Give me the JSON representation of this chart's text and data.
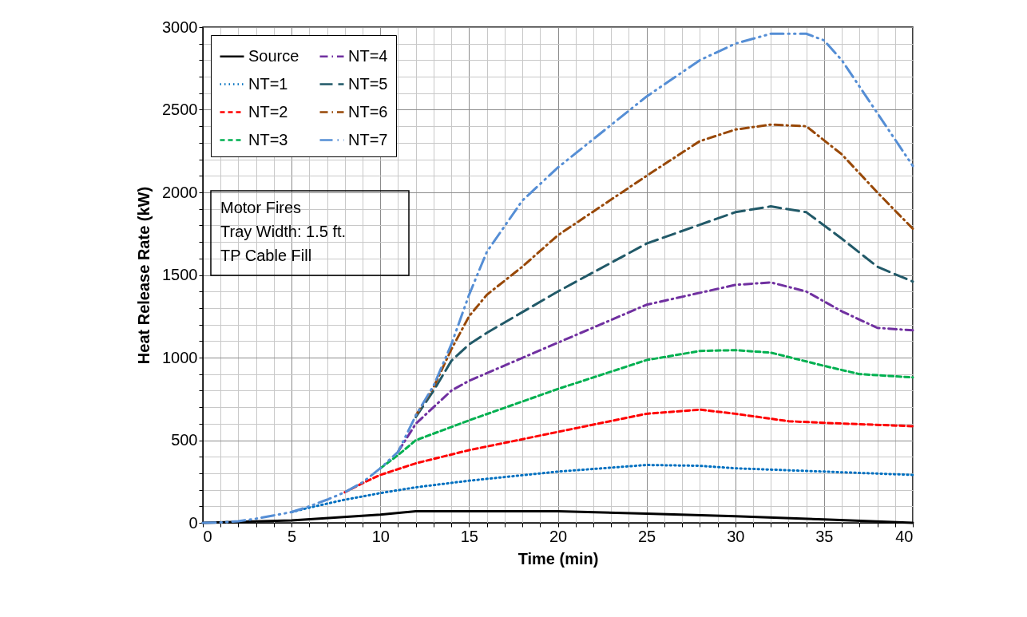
{
  "chart_data": {
    "type": "line",
    "xlabel": "Time (min)",
    "ylabel": "Heat Release Rate (kW)",
    "annotations": [
      "Motor Fires",
      "Tray Width: 1.5 ft.",
      "TP Cable Fill"
    ],
    "xlim": [
      0,
      40
    ],
    "ylim": [
      0,
      3000
    ],
    "xticks": [
      0,
      {
        "value": 1,
        "label": null
      },
      {
        "value": 2,
        "label": null
      },
      {
        "value": 3,
        "label": null
      },
      {
        "value": 4,
        "label": null
      },
      5,
      {
        "value": 6,
        "label": null
      },
      {
        "value": 7,
        "label": null
      },
      {
        "value": 8,
        "label": null
      },
      {
        "value": 9,
        "label": null
      },
      10,
      {
        "value": 11,
        "label": null
      },
      {
        "value": 12,
        "label": null
      },
      {
        "value": 13,
        "label": null
      },
      {
        "value": 14,
        "label": null
      },
      15,
      {
        "value": 16,
        "label": null
      },
      {
        "value": 17,
        "label": null
      },
      {
        "value": 18,
        "label": null
      },
      {
        "value": 19,
        "label": null
      },
      20,
      {
        "value": 21,
        "label": null
      },
      {
        "value": 22,
        "label": null
      },
      {
        "value": 23,
        "label": null
      },
      {
        "value": 24,
        "label": null
      },
      25,
      {
        "value": 26,
        "label": null
      },
      {
        "value": 27,
        "label": null
      },
      {
        "value": 28,
        "label": null
      },
      {
        "value": 29,
        "label": null
      },
      30,
      {
        "value": 31,
        "label": null
      },
      {
        "value": 32,
        "label": null
      },
      {
        "value": 33,
        "label": null
      },
      {
        "value": 34,
        "label": null
      },
      35,
      {
        "value": 36,
        "label": null
      },
      {
        "value": 37,
        "label": null
      },
      {
        "value": 38,
        "label": null
      },
      {
        "value": 39,
        "label": null
      },
      40
    ],
    "yticks": [
      0,
      {
        "value": 100,
        "label": null
      },
      {
        "value": 200,
        "label": null
      },
      {
        "value": 300,
        "label": null
      },
      {
        "value": 400,
        "label": null
      },
      500,
      {
        "value": 600,
        "label": null
      },
      {
        "value": 700,
        "label": null
      },
      {
        "value": 800,
        "label": null
      },
      {
        "value": 900,
        "label": null
      },
      1000,
      {
        "value": 1100,
        "label": null
      },
      {
        "value": 1200,
        "label": null
      },
      {
        "value": 1300,
        "label": null
      },
      {
        "value": 1400,
        "label": null
      },
      1500,
      {
        "value": 1600,
        "label": null
      },
      {
        "value": 1700,
        "label": null
      },
      {
        "value": 1800,
        "label": null
      },
      {
        "value": 1900,
        "label": null
      },
      2000,
      {
        "value": 2100,
        "label": null
      },
      {
        "value": 2200,
        "label": null
      },
      {
        "value": 2300,
        "label": null
      },
      {
        "value": 2400,
        "label": null
      },
      2500,
      {
        "value": 2600,
        "label": null
      },
      {
        "value": 2700,
        "label": null
      },
      {
        "value": 2800,
        "label": null
      },
      {
        "value": 2900,
        "label": null
      },
      3000
    ],
    "grid": true,
    "legend": "top left",
    "marker": "none",
    "series": [
      {
        "name": "Source",
        "color": "#000000",
        "line_style": "solid",
        "x": [
          0,
          5,
          10,
          12,
          20,
          25,
          30,
          35,
          40
        ],
        "values": [
          0,
          15,
          50,
          70,
          70,
          55,
          40,
          20,
          0
        ]
      },
      {
        "name": "NT=1",
        "color": "#0070c0",
        "line_style": "dotted",
        "x": [
          5,
          6,
          8,
          10,
          12,
          15,
          20,
          25,
          28,
          30,
          35,
          40
        ],
        "values": [
          65,
          92,
          140,
          180,
          215,
          255,
          310,
          350,
          345,
          330,
          310,
          290
        ]
      },
      {
        "name": "NT=2",
        "color": "#ff0000",
        "line_style": "dashed",
        "x": [
          8,
          9,
          10,
          12,
          15,
          20,
          25,
          28,
          30,
          33,
          35,
          40
        ],
        "values": [
          185,
          240,
          290,
          360,
          440,
          550,
          660,
          685,
          660,
          615,
          605,
          585
        ]
      },
      {
        "name": "NT=3",
        "color": "#00b050",
        "line_style": "dashed",
        "x": [
          10,
          11,
          12,
          13,
          15,
          20,
          25,
          28,
          30,
          32,
          35,
          37,
          40
        ],
        "values": [
          330,
          410,
          500,
          540,
          620,
          810,
          985,
          1040,
          1045,
          1030,
          950,
          900,
          880
        ]
      },
      {
        "name": "NT=4",
        "color": "#7030a0",
        "line_style": "dashdot",
        "x": [
          11,
          12,
          13,
          14,
          15,
          20,
          25,
          30,
          32,
          34,
          36,
          38,
          40
        ],
        "values": [
          430,
          600,
          700,
          800,
          860,
          1090,
          1320,
          1440,
          1455,
          1400,
          1280,
          1180,
          1165
        ]
      },
      {
        "name": "NT=5",
        "color": "#215968",
        "line_style": "longdash",
        "x": [
          12,
          13,
          14,
          15,
          16,
          20,
          25,
          30,
          32,
          34,
          36,
          38,
          40
        ],
        "values": [
          640,
          800,
          980,
          1080,
          1150,
          1400,
          1690,
          1880,
          1915,
          1880,
          1720,
          1550,
          1460
        ]
      },
      {
        "name": "NT=6",
        "color": "#984807",
        "line_style": "dashdot",
        "x": [
          12,
          13,
          14,
          15,
          16,
          18,
          20,
          25,
          28,
          30,
          32,
          34,
          36,
          38,
          40
        ],
        "values": [
          650,
          820,
          1050,
          1250,
          1380,
          1550,
          1740,
          2100,
          2310,
          2380,
          2410,
          2400,
          2230,
          2000,
          1780
        ]
      },
      {
        "name": "NT=7",
        "color": "#558ed5",
        "line_style": "dashdotdot",
        "x": [
          0,
          1,
          2,
          3,
          4,
          5,
          6,
          7,
          8,
          9,
          10,
          11,
          12,
          13,
          14,
          15,
          16,
          18,
          20,
          25,
          28,
          30,
          32,
          34,
          35,
          36,
          38,
          40
        ],
        "values": [
          0,
          2,
          10,
          25,
          45,
          65,
          100,
          140,
          185,
          245,
          330,
          430,
          650,
          830,
          1080,
          1380,
          1640,
          1950,
          2150,
          2580,
          2800,
          2900,
          2960,
          2960,
          2920,
          2800,
          2480,
          2160
        ]
      }
    ]
  }
}
